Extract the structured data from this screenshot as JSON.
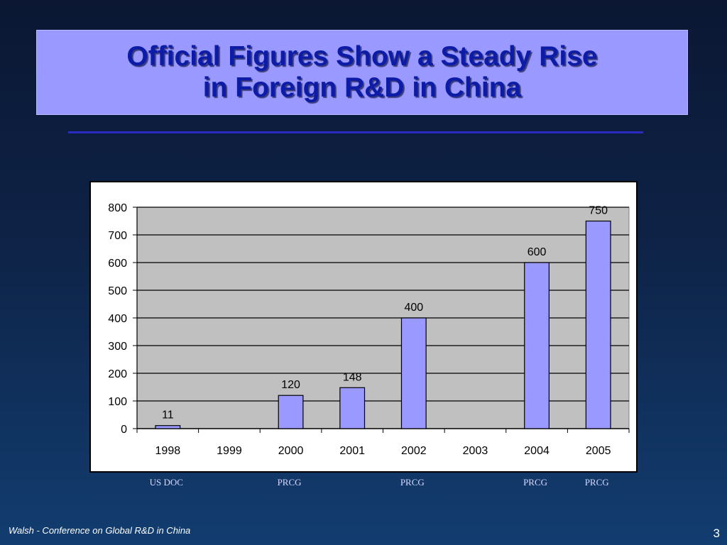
{
  "slide": {
    "title_line1": "Official Figures Show a Steady Rise",
    "title_line2": "in Foreign R&D in China",
    "footer": "Walsh - Conference on Global R&D in China",
    "page_number": "3"
  },
  "colors": {
    "title_box": "#9999ff",
    "title_text": "#0c1ca6",
    "bar_fill": "#9999ff",
    "plot_background": "#c0c0c0",
    "accent_rule": "#2b2bc0"
  },
  "chart_data": {
    "type": "bar",
    "categories": [
      "1998",
      "1999",
      "2000",
      "2001",
      "2002",
      "2003",
      "2004",
      "2005"
    ],
    "values": [
      11,
      null,
      120,
      148,
      400,
      null,
      600,
      750
    ],
    "data_labels": [
      "11",
      "",
      "120",
      "148",
      "400",
      "",
      "600",
      "750"
    ],
    "yticks": [
      "0",
      "100",
      "200",
      "300",
      "400",
      "500",
      "600",
      "700",
      "800"
    ],
    "ylim": [
      0,
      800
    ],
    "grid": true,
    "legend": "none",
    "source_labels": [
      "US DOC",
      "",
      "PRCG",
      "",
      "PRCG",
      "",
      "PRCG",
      "PRCG"
    ]
  }
}
